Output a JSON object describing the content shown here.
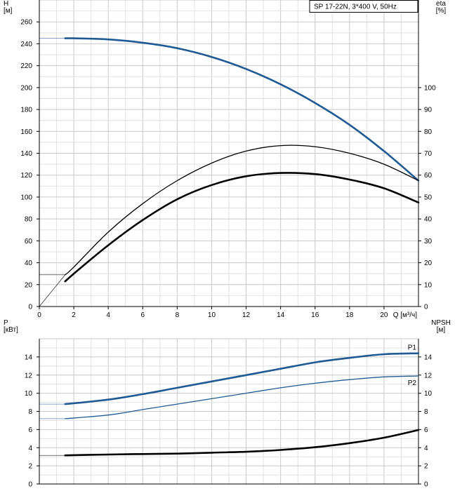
{
  "chart_data": [
    {
      "type": "line",
      "title": "SP 17-22N, 3*400 V, 50Hz",
      "xlabel": "Q [м³/ч]",
      "xlim": [
        0,
        22
      ],
      "xticks": [
        0,
        2,
        4,
        6,
        8,
        10,
        12,
        14,
        16,
        18,
        20
      ],
      "ylabel_left": "H\n[м]",
      "ylim_left": [
        0,
        280
      ],
      "yticks_left": [
        0,
        20,
        40,
        60,
        80,
        100,
        120,
        140,
        160,
        180,
        200,
        220,
        240,
        260
      ],
      "ylabel_right": "eta\n[%]",
      "ylim_right": [
        0,
        140
      ],
      "yticks_right": [
        0,
        10,
        20,
        30,
        40,
        50,
        60,
        70,
        80,
        90,
        100
      ],
      "grid": true,
      "series": [
        {
          "axis": "left",
          "color": "#1f5a94",
          "width": "thick",
          "extension_from_x": 0,
          "x": [
            1.5,
            2,
            4,
            6,
            8,
            10,
            12,
            14,
            16,
            18,
            20,
            22
          ],
          "values": [
            245,
            245,
            244,
            241,
            236,
            228,
            217,
            203,
            186,
            166,
            142,
            115
          ]
        },
        {
          "axis": "right",
          "color": "#000000",
          "width": "thin",
          "extension_from_x": 0,
          "x": [
            1.5,
            2,
            4,
            6,
            8,
            10,
            12,
            14,
            16,
            18,
            20,
            22
          ],
          "values": [
            14.5,
            18,
            34,
            47,
            57.5,
            65.5,
            71,
            73.5,
            73,
            70,
            65,
            57.5
          ]
        },
        {
          "axis": "right",
          "color": "#000000",
          "width": "thick",
          "x": [
            1.5,
            2,
            4,
            6,
            8,
            10,
            12,
            14,
            16,
            18,
            20,
            22
          ],
          "values": [
            11.5,
            15,
            28,
            39.5,
            49,
            55.5,
            59.5,
            61,
            60.5,
            58,
            54,
            47.5
          ]
        }
      ]
    },
    {
      "type": "line",
      "xlim": [
        0,
        22
      ],
      "ylabel_left": "P\n[кВт]",
      "ylim_left": [
        0,
        16
      ],
      "yticks_left": [
        0,
        2,
        4,
        6,
        8,
        10,
        12,
        14
      ],
      "ylabel_right": "NPSH\n[м]",
      "ylim_right": [
        0,
        16
      ],
      "yticks_right": [
        0,
        2,
        4,
        6,
        8,
        10,
        12,
        14
      ],
      "grid": true,
      "series": [
        {
          "name": "P1",
          "axis": "left",
          "color": "#1f5a94",
          "width": "thick",
          "extension_from_x": 0,
          "x": [
            1.5,
            4,
            6,
            8,
            10,
            12,
            14,
            16,
            18,
            20,
            22
          ],
          "values": [
            8.8,
            9.3,
            9.9,
            10.6,
            11.3,
            12.0,
            12.7,
            13.4,
            13.9,
            14.3,
            14.4
          ]
        },
        {
          "name": "P2",
          "axis": "left",
          "color": "#1f5a94",
          "width": "thin",
          "extension_from_x": 0,
          "x": [
            1.5,
            4,
            6,
            8,
            10,
            12,
            14,
            16,
            18,
            20,
            22
          ],
          "values": [
            7.2,
            7.6,
            8.2,
            8.8,
            9.4,
            10.0,
            10.6,
            11.1,
            11.5,
            11.8,
            11.9
          ]
        },
        {
          "axis": "right",
          "color": "#000000",
          "width": "thick",
          "extension_from_x": 0,
          "x": [
            1.5,
            4,
            6,
            8,
            10,
            12,
            14,
            16,
            18,
            20,
            22
          ],
          "values": [
            3.15,
            3.25,
            3.3,
            3.35,
            3.45,
            3.55,
            3.75,
            4.05,
            4.5,
            5.1,
            5.95
          ]
        }
      ]
    }
  ]
}
